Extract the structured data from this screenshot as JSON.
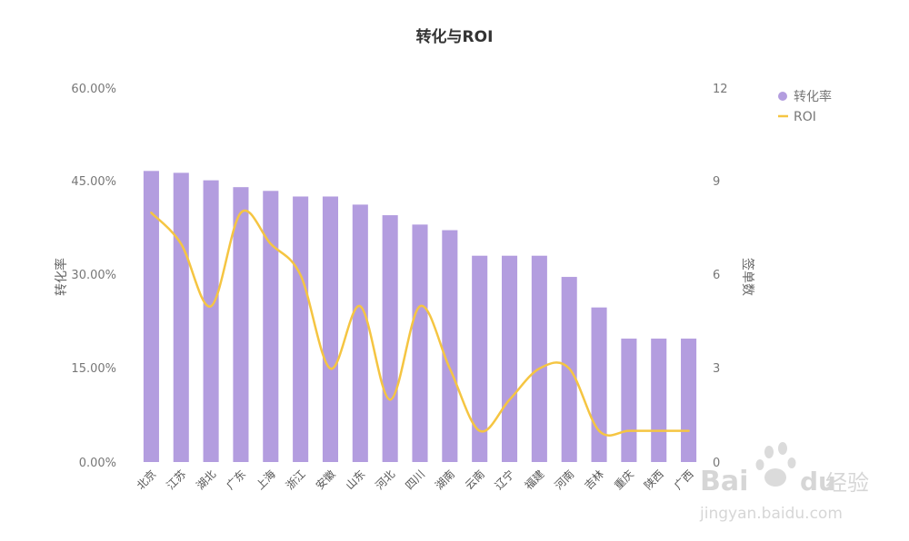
{
  "chart_data": {
    "type": "bar",
    "title": "转化与ROI",
    "categories": [
      "北京",
      "江苏",
      "湖北",
      "广东",
      "上海",
      "浙江",
      "安徽",
      "山东",
      "河北",
      "四川",
      "湖南",
      "云南",
      "辽宁",
      "福建",
      "河南",
      "吉林",
      "重庆",
      "陕西",
      "广西"
    ],
    "series": [
      {
        "name": "转化率",
        "type": "bar",
        "axis": "left",
        "color": "#b39ddf",
        "values": [
          0.467,
          0.464,
          0.452,
          0.441,
          0.435,
          0.426,
          0.426,
          0.413,
          0.396,
          0.381,
          0.372,
          0.331,
          0.331,
          0.331,
          0.297,
          0.248,
          0.198,
          0.198,
          0.198
        ]
      },
      {
        "name": "ROI",
        "type": "line",
        "smooth": true,
        "axis": "right",
        "color": "#f5c542",
        "values": [
          8,
          7,
          5,
          8,
          7,
          6,
          3,
          5,
          2,
          5,
          3,
          1,
          2,
          3,
          3,
          1,
          1,
          1,
          1
        ]
      }
    ],
    "ylabel": "转化率",
    "y2label": "签单数",
    "ylim": [
      0,
      0.6
    ],
    "y2lim": [
      0,
      12
    ],
    "yticks": [
      "0.00%",
      "15.00%",
      "30.00%",
      "45.00%",
      "60.00%"
    ],
    "y2ticks": [
      "0",
      "3",
      "6",
      "9",
      "12"
    ],
    "legend": {
      "position": "top-right",
      "items": [
        "转化率",
        "ROI"
      ]
    },
    "grid": false
  },
  "watermark": {
    "brand": "Bai",
    "brand2": "du",
    "cn": "经验",
    "url": "jingyan.baidu.com"
  }
}
